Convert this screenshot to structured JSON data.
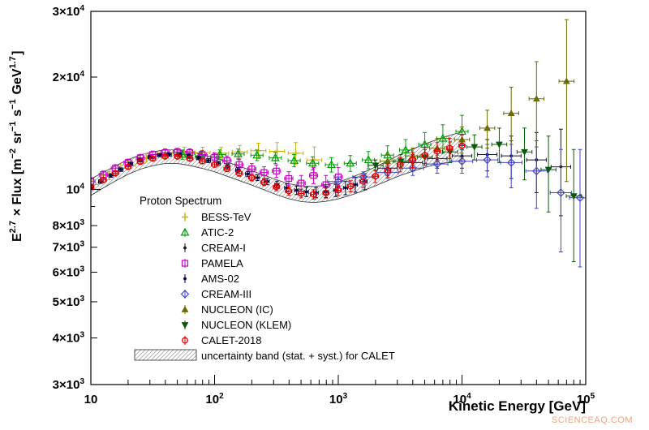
{
  "figure": {
    "background": "#ffffff",
    "watermark": "SCIENCEAQ.COM"
  },
  "chart_data": {
    "type": "scatter",
    "title": "",
    "xlabel": "Kinetic Energy [GeV]",
    "ylabel_plain": "E^2.7 × Flux [m^-2 sr^-1 s^-1 GeV^1.7]",
    "ylabel_parts": [
      [
        "E",
        0
      ],
      [
        "2.7",
        1
      ],
      [
        " × Flux [m",
        0
      ],
      [
        "−2",
        1
      ],
      [
        " sr",
        0
      ],
      [
        "−1",
        1
      ],
      [
        " s",
        0
      ],
      [
        "−1",
        1
      ],
      [
        " GeV",
        0
      ],
      [
        "1.7",
        1
      ],
      [
        "]",
        0
      ]
    ],
    "xscale": "log",
    "yscale": "log",
    "xlim": [
      10,
      100000
    ],
    "ylim": [
      3000,
      30000
    ],
    "grid": false,
    "legend_position": "left-center",
    "x_ticks": [
      {
        "v": 10,
        "pre": "10",
        "exp": ""
      },
      {
        "v": 100,
        "pre": "10",
        "exp": "2"
      },
      {
        "v": 1000,
        "pre": "10",
        "exp": "3"
      },
      {
        "v": 10000,
        "pre": "10",
        "exp": "4"
      },
      {
        "v": 100000,
        "pre": "10",
        "exp": "5"
      }
    ],
    "y_ticks": [
      {
        "v": 30000,
        "pre": "3×10",
        "exp": "4"
      },
      {
        "v": 20000,
        "pre": "2×10",
        "exp": "4"
      },
      {
        "v": 10000,
        "pre": "10",
        "exp": "4"
      },
      {
        "v": 8000,
        "pre": "8×10",
        "exp": "3"
      },
      {
        "v": 7000,
        "pre": "7×10",
        "exp": "3"
      },
      {
        "v": 6000,
        "pre": "6×10",
        "exp": "3"
      },
      {
        "v": 5000,
        "pre": "5×10",
        "exp": "3"
      },
      {
        "v": 4000,
        "pre": "4×10",
        "exp": "3"
      },
      {
        "v": 3000,
        "pre": "3×10",
        "exp": "3"
      }
    ],
    "legend": {
      "title": "Proton Spectrum",
      "band_label": "uncertainty band (stat. + syst.) for CALET"
    },
    "band": {
      "label": "CALET uncertainty band (stat. + syst.)",
      "points": [
        [
          10,
          9640,
          10660
        ],
        [
          12.6,
          10090,
          11110
        ],
        [
          15.8,
          10540,
          11560
        ],
        [
          20,
          10980,
          12020
        ],
        [
          25.1,
          11330,
          12370
        ],
        [
          31.6,
          11580,
          12620
        ],
        [
          39.8,
          11740,
          12760
        ],
        [
          50.1,
          11740,
          12760
        ],
        [
          63.1,
          11590,
          12610
        ],
        [
          79.4,
          11390,
          12410
        ],
        [
          100,
          11150,
          12150
        ],
        [
          126,
          10850,
          11850
        ],
        [
          158,
          10560,
          11540
        ],
        [
          200,
          10270,
          11230
        ],
        [
          251,
          9980,
          10920
        ],
        [
          316,
          9680,
          10620
        ],
        [
          398,
          9440,
          10360
        ],
        [
          501,
          9280,
          10220
        ],
        [
          631,
          9220,
          10180
        ],
        [
          794,
          9290,
          10270
        ],
        [
          1000,
          9430,
          10470
        ],
        [
          1259,
          9650,
          10750
        ],
        [
          1585,
          9910,
          11090
        ],
        [
          1995,
          10220,
          11480
        ],
        [
          2512,
          10560,
          11940
        ],
        [
          3162,
          10900,
          12400
        ],
        [
          3981,
          11180,
          12820
        ],
        [
          5012,
          11460,
          13240
        ],
        [
          6310,
          11680,
          13620
        ],
        [
          7943,
          11840,
          13960
        ],
        [
          10000,
          11950,
          14250
        ]
      ]
    },
    "series": [
      {
        "name": "BESS-TeV",
        "color": "#c9b400",
        "marker": "plus",
        "exf": 1.15,
        "points": [
          [
            10,
            10300,
            260
          ],
          [
            14,
            10900,
            280
          ],
          [
            20,
            11600,
            300
          ],
          [
            28,
            12150,
            320
          ],
          [
            40,
            12500,
            350
          ],
          [
            57,
            12600,
            380
          ],
          [
            80,
            12550,
            420
          ],
          [
            113,
            12500,
            460
          ],
          [
            160,
            12600,
            520
          ],
          [
            226,
            12700,
            600
          ],
          [
            320,
            12650,
            700
          ],
          [
            453,
            12500,
            850
          ],
          [
            640,
            12000,
            1000
          ]
        ]
      },
      {
        "name": "ATIC-2",
        "color": "#00a000",
        "marker": "triangle-open",
        "exf": 1.12,
        "points": [
          [
            55,
            12400,
            350
          ],
          [
            78,
            12300,
            350
          ],
          [
            110,
            12400,
            360
          ],
          [
            155,
            12450,
            380
          ],
          [
            220,
            12350,
            400
          ],
          [
            310,
            12150,
            420
          ],
          [
            440,
            11950,
            450
          ],
          [
            620,
            11750,
            480
          ],
          [
            880,
            11650,
            520
          ],
          [
            1250,
            11750,
            570
          ],
          [
            1750,
            12000,
            640
          ],
          [
            2500,
            12350,
            730
          ],
          [
            3500,
            12750,
            850
          ],
          [
            5000,
            13200,
            1000
          ],
          [
            7000,
            13700,
            1200
          ],
          [
            10000,
            14300,
            1500
          ]
        ]
      },
      {
        "name": "CREAM-I",
        "color": "#15152e",
        "marker": "dot",
        "exf": 1.2,
        "points": [
          [
            2500,
            11400,
            500
          ],
          [
            4000,
            11800,
            600
          ],
          [
            6300,
            12100,
            700
          ],
          [
            10000,
            12300,
            900
          ],
          [
            16000,
            12400,
            1200
          ],
          [
            25000,
            12300,
            1600
          ],
          [
            40000,
            12000,
            2200
          ],
          [
            63000,
            11500,
            3000
          ]
        ]
      },
      {
        "name": "PAMELA",
        "color": "#c400c4",
        "marker": "square-open",
        "exf": 1.08,
        "points": [
          [
            10,
            10500,
            250
          ],
          [
            12.6,
            10950,
            250
          ],
          [
            15.8,
            11400,
            250
          ],
          [
            20,
            11800,
            260
          ],
          [
            25.1,
            12150,
            260
          ],
          [
            31.6,
            12400,
            270
          ],
          [
            39.8,
            12550,
            280
          ],
          [
            50.1,
            12600,
            290
          ],
          [
            63.1,
            12550,
            300
          ],
          [
            79.4,
            12400,
            310
          ],
          [
            100,
            12200,
            320
          ],
          [
            126,
            11950,
            340
          ],
          [
            158,
            11650,
            360
          ],
          [
            200,
            11350,
            380
          ],
          [
            251,
            11100,
            400
          ],
          [
            316,
            11200,
            430
          ],
          [
            398,
            10700,
            460
          ],
          [
            501,
            10400,
            500
          ],
          [
            631,
            10900,
            540
          ],
          [
            794,
            10300,
            600
          ],
          [
            1000,
            10800,
            650
          ]
        ]
      },
      {
        "name": "AMS-02",
        "color": "#000040",
        "marker": "dot",
        "exf": 1.04,
        "points": [
          [
            10,
            10100,
            120
          ],
          [
            12,
            10500,
            120
          ],
          [
            14.5,
            10900,
            120
          ],
          [
            17.5,
            11300,
            120
          ],
          [
            21,
            11700,
            120
          ],
          [
            25,
            12000,
            120
          ],
          [
            30,
            12200,
            120
          ],
          [
            36,
            12350,
            120
          ],
          [
            43,
            12400,
            130
          ],
          [
            52,
            12380,
            130
          ],
          [
            62,
            12300,
            140
          ],
          [
            74,
            12150,
            140
          ],
          [
            89,
            11950,
            150
          ],
          [
            107,
            11750,
            150
          ],
          [
            128,
            11500,
            160
          ],
          [
            154,
            11250,
            170
          ],
          [
            185,
            11000,
            180
          ],
          [
            222,
            10750,
            190
          ],
          [
            266,
            10500,
            200
          ],
          [
            319,
            10300,
            220
          ],
          [
            383,
            10100,
            240
          ],
          [
            460,
            9950,
            260
          ],
          [
            552,
            9850,
            280
          ],
          [
            662,
            9800,
            310
          ],
          [
            794,
            9850,
            340
          ],
          [
            953,
            9950,
            380
          ],
          [
            1144,
            10100,
            420
          ],
          [
            1373,
            10300,
            470
          ],
          [
            1644,
            10500,
            520
          ]
        ]
      },
      {
        "name": "CREAM-III",
        "color": "#4444cc",
        "marker": "diamond-open",
        "exf": 1.22,
        "points": [
          [
            1000,
            10500,
            300
          ],
          [
            1600,
            10800,
            350
          ],
          [
            2500,
            11100,
            400
          ],
          [
            4000,
            11400,
            500
          ],
          [
            6300,
            11700,
            650
          ],
          [
            10000,
            11900,
            850
          ],
          [
            16000,
            12000,
            1200
          ],
          [
            25000,
            11800,
            1700
          ],
          [
            40000,
            11200,
            2300
          ],
          [
            63000,
            9800,
            3000
          ],
          [
            90000,
            9500,
            3300
          ]
        ]
      },
      {
        "name": "NUCLEON (IC)",
        "color": "#6b6b00",
        "marker": "triangle-filled",
        "exf": 1.15,
        "points": [
          [
            2500,
            11900,
            500
          ],
          [
            4000,
            12300,
            600
          ],
          [
            6300,
            12900,
            800
          ],
          [
            10000,
            13600,
            1100
          ],
          [
            16000,
            14600,
            1700
          ],
          [
            25000,
            16000,
            2800
          ],
          [
            40000,
            17500,
            4500
          ],
          [
            70000,
            19500,
            9000
          ]
        ]
      },
      {
        "name": "NUCLEON (KLEM)",
        "color": "#0a5a0a",
        "marker": "triangle-down-filled",
        "exf": 1.15,
        "points": [
          [
            2000,
            11600,
            400
          ],
          [
            3200,
            11900,
            500
          ],
          [
            5000,
            12200,
            600
          ],
          [
            8000,
            12600,
            800
          ],
          [
            12600,
            13000,
            1000
          ],
          [
            20000,
            13200,
            1400
          ],
          [
            32000,
            12600,
            2000
          ],
          [
            50000,
            11300,
            2600
          ],
          [
            80000,
            9600,
            3200
          ]
        ]
      },
      {
        "name": "CALET-2018",
        "color": "#e10000",
        "marker": "circle-open",
        "exf": 1.06,
        "points": [
          [
            10,
            10150,
            130
          ],
          [
            12.6,
            10600,
            130
          ],
          [
            15.8,
            11050,
            130
          ],
          [
            20,
            11500,
            140
          ],
          [
            25.1,
            11850,
            140
          ],
          [
            31.6,
            12100,
            150
          ],
          [
            39.8,
            12250,
            150
          ],
          [
            50.1,
            12250,
            160
          ],
          [
            63.1,
            12100,
            160
          ],
          [
            79.4,
            11900,
            170
          ],
          [
            100,
            11650,
            180
          ],
          [
            126,
            11350,
            190
          ],
          [
            158,
            11050,
            200
          ],
          [
            200,
            10750,
            210
          ],
          [
            251,
            10450,
            220
          ],
          [
            316,
            10150,
            230
          ],
          [
            398,
            9900,
            250
          ],
          [
            501,
            9750,
            260
          ],
          [
            631,
            9700,
            280
          ],
          [
            794,
            9780,
            300
          ],
          [
            1000,
            9950,
            320
          ],
          [
            1259,
            10200,
            350
          ],
          [
            1585,
            10500,
            380
          ],
          [
            1995,
            10850,
            420
          ],
          [
            2512,
            11250,
            460
          ],
          [
            3162,
            11650,
            510
          ],
          [
            3981,
            12000,
            560
          ],
          [
            5012,
            12350,
            620
          ],
          [
            6310,
            12650,
            700
          ],
          [
            7943,
            12900,
            800
          ],
          [
            10000,
            13100,
            900
          ]
        ]
      }
    ]
  }
}
